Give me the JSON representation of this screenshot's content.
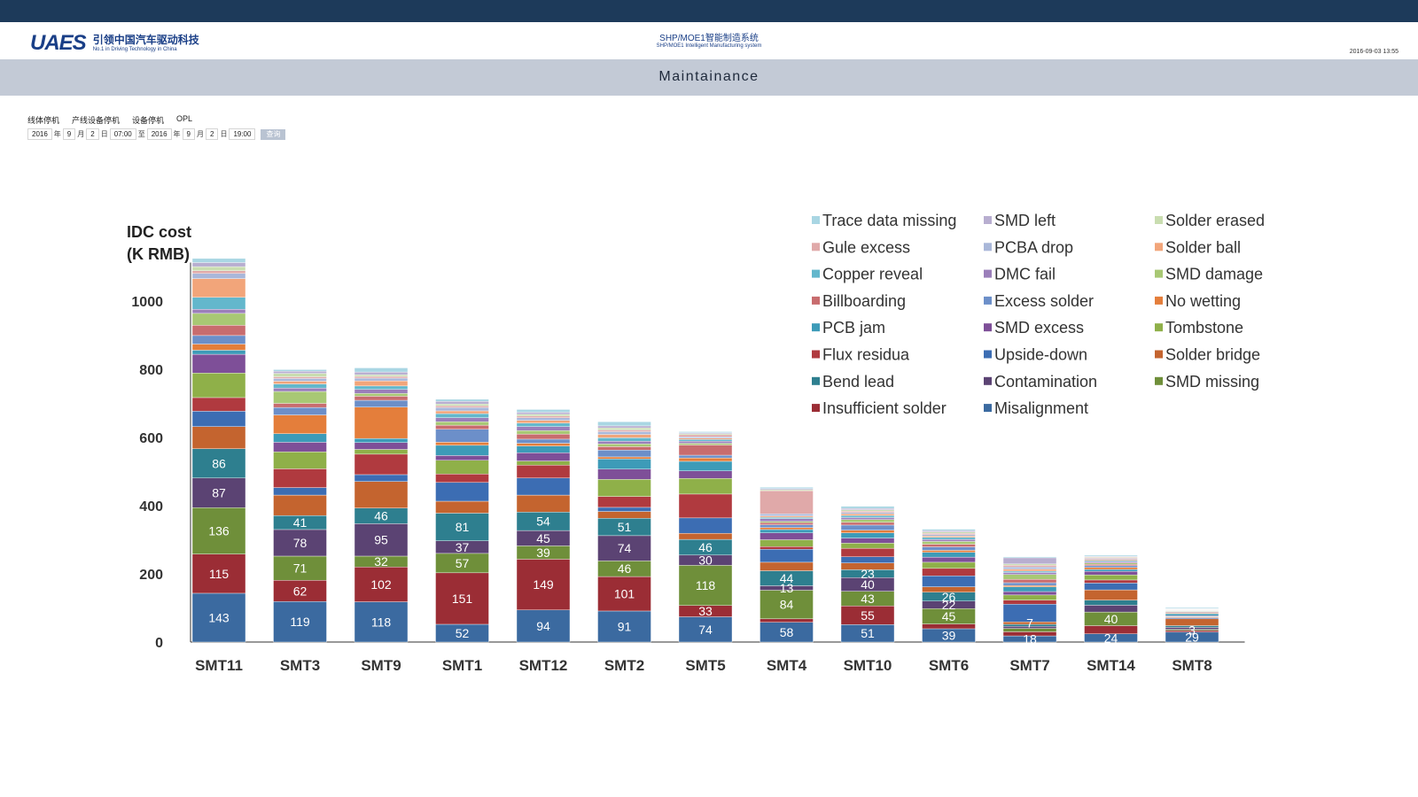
{
  "header": {
    "logo_mark": "UAES",
    "logo_cn": "引领中国汽车驱动科技",
    "logo_en": "No.1 in Driving Technology in China",
    "system_title_cn": "SHP/MOE1智能制造系统",
    "system_title_en": "SHP/MOE1 Intelligent Manufacturing system",
    "datetime": "2016-09-03 13:55"
  },
  "page_title": "Maintainance",
  "tabs": [
    "线体停机",
    "产线设备停机",
    "设备停机",
    "OPL"
  ],
  "filter": {
    "from_year": "2016",
    "year_unit": "年",
    "from_month": "9",
    "month_unit": "月",
    "from_day": "2",
    "from_time": "07:00",
    "to_label": "至",
    "to_year": "2016",
    "to_month": "9",
    "to_day": "2",
    "to_time": "19:00",
    "day_unit": "日",
    "query_button": "查询"
  },
  "colors": {
    "topbar": "#1d3a5a",
    "pagebar": "#c3cad6",
    "brand": "#1a3f87"
  },
  "chart_data": {
    "type": "bar",
    "stacked": true,
    "ylabel": "IDC cost\n(K RMB)",
    "xlabel": "",
    "ylim": [
      0,
      1100
    ],
    "yticks": [
      0,
      200,
      400,
      600,
      800,
      1000
    ],
    "grid": false,
    "legend_position": "top-right",
    "categories": [
      "SMT11",
      "SMT3",
      "SMT9",
      "SMT1",
      "SMT12",
      "SMT2",
      "SMT5",
      "SMT4",
      "SMT10",
      "SMT6",
      "SMT7",
      "SMT14",
      "SMT8"
    ],
    "series": [
      {
        "name": "Misalignment",
        "color": "#3b6aa0",
        "values": [
          143,
          119,
          118,
          52,
          94,
          91,
          74,
          58,
          51,
          39,
          18,
          24,
          29
        ]
      },
      {
        "name": "Insufficient solder",
        "color": "#9b2d35",
        "values": [
          115,
          62,
          102,
          151,
          149,
          101,
          33,
          10,
          55,
          14,
          12,
          24,
          5
        ]
      },
      {
        "name": "SMD missing",
        "color": "#6f8f3a",
        "values": [
          136,
          71,
          32,
          57,
          39,
          46,
          118,
          84,
          43,
          45,
          10,
          40,
          3
        ]
      },
      {
        "name": "Contamination",
        "color": "#5b4373",
        "values": [
          87,
          78,
          95,
          37,
          45,
          74,
          30,
          13,
          40,
          22,
          6,
          20,
          6
        ]
      },
      {
        "name": "Bend lead",
        "color": "#2e7f8f",
        "values": [
          86,
          41,
          46,
          81,
          54,
          51,
          46,
          44,
          23,
          26,
          6,
          15,
          5
        ]
      },
      {
        "name": "Solder bridge",
        "color": "#c4642f",
        "values": [
          65,
          60,
          78,
          35,
          50,
          20,
          18,
          25,
          20,
          16,
          7,
          30,
          20
        ]
      },
      {
        "name": "Upside-down",
        "color": "#3c6db3",
        "values": [
          45,
          22,
          20,
          55,
          50,
          12,
          45,
          38,
          18,
          32,
          52,
          20,
          3
        ]
      },
      {
        "name": "Flux residua",
        "color": "#b03a3f",
        "values": [
          40,
          55,
          60,
          25,
          38,
          32,
          70,
          8,
          25,
          22,
          12,
          9,
          2
        ]
      },
      {
        "name": "Tombstone",
        "color": "#8fb049",
        "values": [
          72,
          50,
          14,
          40,
          12,
          50,
          46,
          20,
          15,
          18,
          15,
          15,
          2
        ]
      },
      {
        "name": "SMD excess",
        "color": "#7e4f98",
        "values": [
          55,
          28,
          20,
          14,
          24,
          30,
          22,
          20,
          15,
          15,
          10,
          10,
          2
        ]
      },
      {
        "name": "PCB jam",
        "color": "#3d9bb8",
        "values": [
          12,
          25,
          12,
          30,
          20,
          30,
          28,
          10,
          15,
          14,
          14,
          6,
          6
        ]
      },
      {
        "name": "No wetting",
        "color": "#e47e3b",
        "values": [
          18,
          55,
          92,
          9,
          8,
          6,
          10,
          6,
          8,
          6,
          4,
          6,
          2
        ]
      },
      {
        "name": "Excess solder",
        "color": "#6c8fc9",
        "values": [
          25,
          22,
          20,
          38,
          12,
          20,
          8,
          8,
          15,
          10,
          8,
          5,
          2
        ]
      },
      {
        "name": "Billboarding",
        "color": "#c86c6e",
        "values": [
          30,
          12,
          12,
          12,
          15,
          10,
          30,
          6,
          8,
          8,
          10,
          4,
          2
        ]
      },
      {
        "name": "SMD damage",
        "color": "#a8c874",
        "values": [
          35,
          35,
          8,
          10,
          10,
          8,
          5,
          4,
          8,
          8,
          14,
          4,
          2
        ]
      },
      {
        "name": "DMC fail",
        "color": "#9b7fba",
        "values": [
          12,
          10,
          12,
          12,
          12,
          8,
          6,
          8,
          6,
          6,
          6,
          4,
          1
        ]
      },
      {
        "name": "Copper reveal",
        "color": "#63b7cc",
        "values": [
          35,
          12,
          10,
          12,
          10,
          10,
          5,
          4,
          6,
          6,
          4,
          3,
          1
        ]
      },
      {
        "name": "Solder ball",
        "color": "#f2a57a",
        "values": [
          55,
          8,
          15,
          8,
          8,
          10,
          4,
          4,
          5,
          4,
          6,
          3,
          1
        ]
      },
      {
        "name": "PCBA drop",
        "color": "#a9b7d9",
        "values": [
          15,
          8,
          8,
          10,
          8,
          8,
          4,
          6,
          4,
          4,
          6,
          3,
          1
        ]
      },
      {
        "name": "Gule excess",
        "color": "#e0a9a9",
        "values": [
          8,
          5,
          5,
          5,
          5,
          5,
          6,
          68,
          4,
          4,
          5,
          3,
          1
        ]
      },
      {
        "name": "Solder erased",
        "color": "#c9ddb0",
        "values": [
          12,
          10,
          5,
          5,
          5,
          6,
          3,
          3,
          4,
          4,
          4,
          2,
          1
        ]
      },
      {
        "name": "SMD left",
        "color": "#b8aed0",
        "values": [
          12,
          6,
          8,
          8,
          6,
          6,
          3,
          3,
          4,
          4,
          18,
          2,
          1
        ]
      },
      {
        "name": "Trace data missing",
        "color": "#a9d6e3",
        "values": [
          12,
          5,
          12,
          6,
          8,
          12,
          3,
          4,
          6,
          4,
          3,
          3,
          3
        ]
      }
    ],
    "data_labels": [
      {
        "category": "SMT11",
        "series": "Misalignment",
        "text": "143"
      },
      {
        "category": "SMT11",
        "series": "Insufficient solder",
        "text": "115"
      },
      {
        "category": "SMT11",
        "series": "SMD missing",
        "text": "136"
      },
      {
        "category": "SMT11",
        "series": "Contamination",
        "text": "87"
      },
      {
        "category": "SMT11",
        "series": "Bend lead",
        "text": "86"
      },
      {
        "category": "SMT3",
        "series": "Misalignment",
        "text": "119"
      },
      {
        "category": "SMT3",
        "series": "Insufficient solder",
        "text": "62"
      },
      {
        "category": "SMT3",
        "series": "SMD missing",
        "text": "71"
      },
      {
        "category": "SMT3",
        "series": "Contamination",
        "text": "78"
      },
      {
        "category": "SMT3",
        "series": "Bend lead",
        "text": "41"
      },
      {
        "category": "SMT9",
        "series": "Misalignment",
        "text": "118"
      },
      {
        "category": "SMT9",
        "series": "Insufficient solder",
        "text": "102"
      },
      {
        "category": "SMT9",
        "series": "SMD missing",
        "text": "32"
      },
      {
        "category": "SMT9",
        "series": "Contamination",
        "text": "95"
      },
      {
        "category": "SMT9",
        "series": "Bend lead",
        "text": "46"
      },
      {
        "category": "SMT1",
        "series": "Misalignment",
        "text": "52"
      },
      {
        "category": "SMT1",
        "series": "Insufficient solder",
        "text": "151"
      },
      {
        "category": "SMT1",
        "series": "SMD missing",
        "text": "57"
      },
      {
        "category": "SMT1",
        "series": "Contamination",
        "text": "37"
      },
      {
        "category": "SMT1",
        "series": "Bend lead",
        "text": "81"
      },
      {
        "category": "SMT12",
        "series": "Misalignment",
        "text": "94"
      },
      {
        "category": "SMT12",
        "series": "Insufficient solder",
        "text": "149"
      },
      {
        "category": "SMT12",
        "series": "SMD missing",
        "text": "39"
      },
      {
        "category": "SMT12",
        "series": "Contamination",
        "text": "45"
      },
      {
        "category": "SMT12",
        "series": "Bend lead",
        "text": "54"
      },
      {
        "category": "SMT2",
        "series": "Misalignment",
        "text": "91"
      },
      {
        "category": "SMT2",
        "series": "Insufficient solder",
        "text": "101"
      },
      {
        "category": "SMT2",
        "series": "SMD missing",
        "text": "46"
      },
      {
        "category": "SMT2",
        "series": "Contamination",
        "text": "74"
      },
      {
        "category": "SMT2",
        "series": "Bend lead",
        "text": "51"
      },
      {
        "category": "SMT5",
        "series": "Misalignment",
        "text": "74"
      },
      {
        "category": "SMT5",
        "series": "Insufficient solder",
        "text": "33"
      },
      {
        "category": "SMT5",
        "series": "SMD missing",
        "text": "118"
      },
      {
        "category": "SMT5",
        "series": "Contamination",
        "text": "30"
      },
      {
        "category": "SMT5",
        "series": "Bend lead",
        "text": "46"
      },
      {
        "category": "SMT4",
        "series": "Misalignment",
        "text": "58"
      },
      {
        "category": "SMT4",
        "series": "SMD missing",
        "text": "84"
      },
      {
        "category": "SMT4",
        "series": "Contamination",
        "text": "13"
      },
      {
        "category": "SMT4",
        "series": "Bend lead",
        "text": "44"
      },
      {
        "category": "SMT10",
        "series": "Misalignment",
        "text": "51"
      },
      {
        "category": "SMT10",
        "series": "Insufficient solder",
        "text": "55"
      },
      {
        "category": "SMT10",
        "series": "SMD missing",
        "text": "43"
      },
      {
        "category": "SMT10",
        "series": "Contamination",
        "text": "40"
      },
      {
        "category": "SMT10",
        "series": "Bend lead",
        "text": "23"
      },
      {
        "category": "SMT6",
        "series": "Misalignment",
        "text": "39"
      },
      {
        "category": "SMT6",
        "series": "SMD missing",
        "text": "45"
      },
      {
        "category": "SMT6",
        "series": "Contamination",
        "text": "22"
      },
      {
        "category": "SMT6",
        "series": "Bend lead",
        "text": "26"
      },
      {
        "category": "SMT7",
        "series": "Misalignment",
        "text": "18"
      },
      {
        "category": "SMT7",
        "series": "Solder bridge",
        "text": "7"
      },
      {
        "category": "SMT14",
        "series": "Misalignment",
        "text": "24"
      },
      {
        "category": "SMT14",
        "series": "SMD missing",
        "text": "40"
      },
      {
        "category": "SMT8",
        "series": "Misalignment",
        "text": "29"
      },
      {
        "category": "SMT8",
        "series": "SMD missing",
        "text": "3"
      }
    ],
    "legend_order": [
      [
        "Trace data missing",
        "SMD left",
        "Solder erased"
      ],
      [
        "Gule excess",
        "PCBA drop",
        "Solder ball"
      ],
      [
        "Copper reveal",
        "DMC fail",
        "SMD damage"
      ],
      [
        "Billboarding",
        "Excess solder",
        "No wetting"
      ],
      [
        "PCB jam",
        "SMD excess",
        "Tombstone"
      ],
      [
        "Flux residua",
        "Upside-down",
        "Solder bridge"
      ],
      [
        "Bend lead",
        "Contamination",
        "SMD missing"
      ],
      [
        "Insufficient solder",
        "Misalignment",
        ""
      ]
    ]
  }
}
